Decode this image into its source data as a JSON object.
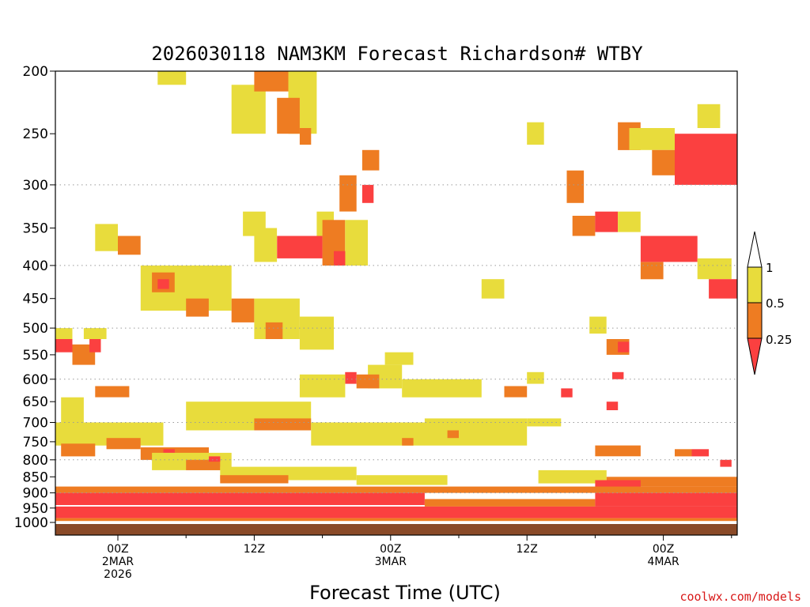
{
  "chart_data": {
    "type": "heatmap",
    "title": "2026030118 NAM3KM Forecast Richardson# WTBY",
    "xlabel": "Forecast Time (UTC)",
    "ylabel": "",
    "credit": "coolwx.com/models",
    "y_axis": {
      "scale": "log-pressure",
      "range": [
        1000,
        200
      ],
      "inverted": true,
      "ticks": [
        200,
        250,
        300,
        350,
        400,
        450,
        500,
        550,
        600,
        650,
        700,
        750,
        800,
        850,
        900,
        950,
        1000
      ]
    },
    "x_axis": {
      "range_hours": [
        -5.5,
        54.5
      ],
      "ticks": [
        {
          "hour": 0,
          "lines": [
            "00Z",
            "2MAR",
            "2026"
          ]
        },
        {
          "hour": 12,
          "lines": [
            "12Z"
          ]
        },
        {
          "hour": 24,
          "lines": [
            "00Z",
            "3MAR"
          ]
        },
        {
          "hour": 36,
          "lines": [
            "12Z"
          ]
        },
        {
          "hour": 48,
          "lines": [
            "00Z",
            "4MAR"
          ]
        }
      ]
    },
    "grid": {
      "dotted_pressure_levels": [
        300,
        400,
        500,
        600,
        700,
        800,
        900
      ]
    },
    "colorbar": {
      "levels": [
        "1",
        "0.5",
        "0.25"
      ],
      "bins": [
        {
          "label": "> 1",
          "color": "#ffffff"
        },
        {
          "label": "0.5 - 1",
          "color": "#e8dc3c"
        },
        {
          "label": "0.25 - 0.5",
          "color": "#ee7c22"
        },
        {
          "label": "< 0.25",
          "color": "#fb4040"
        }
      ]
    },
    "ground_color": "#8a4a28",
    "regions": [
      {
        "bin": 1,
        "hours": [
          3.5,
          6
        ],
        "p": [
          200,
          210
        ]
      },
      {
        "bin": 1,
        "hours": [
          10,
          13
        ],
        "p": [
          210,
          250
        ]
      },
      {
        "bin": 2,
        "hours": [
          12,
          15
        ],
        "p": [
          200,
          215
        ]
      },
      {
        "bin": 1,
        "hours": [
          15,
          17.5
        ],
        "p": [
          200,
          250
        ]
      },
      {
        "bin": 2,
        "hours": [
          14,
          16
        ],
        "p": [
          220,
          250
        ]
      },
      {
        "bin": 2,
        "hours": [
          16,
          17
        ],
        "p": [
          245,
          260
        ]
      },
      {
        "bin": 2,
        "hours": [
          21.5,
          23
        ],
        "p": [
          265,
          285
        ]
      },
      {
        "bin": 1,
        "hours": [
          36,
          37.5
        ],
        "p": [
          240,
          260
        ]
      },
      {
        "bin": 2,
        "hours": [
          44,
          46
        ],
        "p": [
          240,
          265
        ]
      },
      {
        "bin": 1,
        "hours": [
          45,
          49
        ],
        "p": [
          245,
          265
        ]
      },
      {
        "bin": 3,
        "hours": [
          49,
          54.5
        ],
        "p": [
          250,
          300
        ]
      },
      {
        "bin": 2,
        "hours": [
          47,
          49
        ],
        "p": [
          265,
          290
        ]
      },
      {
        "bin": 1,
        "hours": [
          51,
          53
        ],
        "p": [
          225,
          245
        ]
      },
      {
        "bin": 2,
        "hours": [
          39.5,
          41
        ],
        "p": [
          285,
          320
        ]
      },
      {
        "bin": 2,
        "hours": [
          19.5,
          21
        ],
        "p": [
          290,
          330
        ]
      },
      {
        "bin": 3,
        "hours": [
          21.5,
          22.5
        ],
        "p": [
          300,
          320
        ]
      },
      {
        "bin": 1,
        "hours": [
          17.5,
          19
        ],
        "p": [
          330,
          360
        ]
      },
      {
        "bin": 1,
        "hours": [
          11,
          13
        ],
        "p": [
          330,
          360
        ]
      },
      {
        "bin": 2,
        "hours": [
          0,
          2
        ],
        "p": [
          360,
          385
        ]
      },
      {
        "bin": 1,
        "hours": [
          -2,
          0
        ],
        "p": [
          345,
          380
        ]
      },
      {
        "bin": 3,
        "hours": [
          14,
          18
        ],
        "p": [
          360,
          390
        ]
      },
      {
        "bin": 1,
        "hours": [
          12,
          14
        ],
        "p": [
          350,
          395
        ]
      },
      {
        "bin": 2,
        "hours": [
          18,
          20
        ],
        "p": [
          340,
          400
        ]
      },
      {
        "bin": 1,
        "hours": [
          20,
          22
        ],
        "p": [
          340,
          400
        ]
      },
      {
        "bin": 3,
        "hours": [
          19,
          20
        ],
        "p": [
          380,
          400
        ]
      },
      {
        "bin": 2,
        "hours": [
          40,
          42
        ],
        "p": [
          335,
          360
        ]
      },
      {
        "bin": 3,
        "hours": [
          42,
          44
        ],
        "p": [
          330,
          355
        ]
      },
      {
        "bin": 1,
        "hours": [
          44,
          46
        ],
        "p": [
          330,
          355
        ]
      },
      {
        "bin": 3,
        "hours": [
          46,
          51
        ],
        "p": [
          360,
          395
        ]
      },
      {
        "bin": 2,
        "hours": [
          46,
          48
        ],
        "p": [
          395,
          420
        ]
      },
      {
        "bin": 1,
        "hours": [
          51,
          54
        ],
        "p": [
          390,
          420
        ]
      },
      {
        "bin": 3,
        "hours": [
          52,
          54.5
        ],
        "p": [
          420,
          450
        ]
      },
      {
        "bin": 1,
        "hours": [
          2,
          10
        ],
        "p": [
          400,
          470
        ]
      },
      {
        "bin": 2,
        "hours": [
          3,
          5
        ],
        "p": [
          410,
          440
        ]
      },
      {
        "bin": 3,
        "hours": [
          3.5,
          4.5
        ],
        "p": [
          420,
          435
        ]
      },
      {
        "bin": 2,
        "hours": [
          6,
          8
        ],
        "p": [
          450,
          480
        ]
      },
      {
        "bin": 2,
        "hours": [
          10,
          12
        ],
        "p": [
          450,
          490
        ]
      },
      {
        "bin": 1,
        "hours": [
          12,
          16
        ],
        "p": [
          450,
          520
        ]
      },
      {
        "bin": 2,
        "hours": [
          13,
          14.5
        ],
        "p": [
          490,
          520
        ]
      },
      {
        "bin": 1,
        "hours": [
          16,
          19
        ],
        "p": [
          480,
          540
        ]
      },
      {
        "bin": 1,
        "hours": [
          32,
          34
        ],
        "p": [
          420,
          450
        ]
      },
      {
        "bin": 1,
        "hours": [
          41.5,
          43
        ],
        "p": [
          480,
          510
        ]
      },
      {
        "bin": 2,
        "hours": [
          43,
          45
        ],
        "p": [
          520,
          550
        ]
      },
      {
        "bin": 3,
        "hours": [
          44,
          45
        ],
        "p": [
          525,
          545
        ]
      },
      {
        "bin": 1,
        "hours": [
          -5.5,
          -4
        ],
        "p": [
          500,
          540
        ]
      },
      {
        "bin": 3,
        "hours": [
          -5.5,
          -4
        ],
        "p": [
          520,
          545
        ]
      },
      {
        "bin": 2,
        "hours": [
          -4,
          -2
        ],
        "p": [
          530,
          570
        ]
      },
      {
        "bin": 3,
        "hours": [
          -2.5,
          -1.5
        ],
        "p": [
          520,
          545
        ]
      },
      {
        "bin": 1,
        "hours": [
          -3,
          -1
        ],
        "p": [
          500,
          520
        ]
      },
      {
        "bin": 1,
        "hours": [
          23.5,
          26
        ],
        "p": [
          545,
          570
        ]
      },
      {
        "bin": 1,
        "hours": [
          22,
          25
        ],
        "p": [
          570,
          620
        ]
      },
      {
        "bin": 3,
        "hours": [
          20,
          21
        ],
        "p": [
          585,
          610
        ]
      },
      {
        "bin": 2,
        "hours": [
          21,
          23
        ],
        "p": [
          590,
          620
        ]
      },
      {
        "bin": 1,
        "hours": [
          16,
          20
        ],
        "p": [
          590,
          640
        ]
      },
      {
        "bin": 1,
        "hours": [
          25,
          32
        ],
        "p": [
          600,
          640
        ]
      },
      {
        "bin": 2,
        "hours": [
          34,
          36
        ],
        "p": [
          615,
          640
        ]
      },
      {
        "bin": 1,
        "hours": [
          36,
          37.5
        ],
        "p": [
          585,
          610
        ]
      },
      {
        "bin": 3,
        "hours": [
          43.5,
          44.5
        ],
        "p": [
          585,
          600
        ]
      },
      {
        "bin": 3,
        "hours": [
          39,
          40
        ],
        "p": [
          620,
          640
        ]
      },
      {
        "bin": 3,
        "hours": [
          43,
          44
        ],
        "p": [
          650,
          670
        ]
      },
      {
        "bin": 2,
        "hours": [
          -2,
          1
        ],
        "p": [
          615,
          640
        ]
      },
      {
        "bin": 1,
        "hours": [
          -5,
          -3
        ],
        "p": [
          640,
          720
        ]
      },
      {
        "bin": 1,
        "hours": [
          6,
          17
        ],
        "p": [
          650,
          720
        ]
      },
      {
        "bin": 2,
        "hours": [
          12,
          17
        ],
        "p": [
          690,
          720
        ]
      },
      {
        "bin": 1,
        "hours": [
          17,
          27
        ],
        "p": [
          700,
          760
        ]
      },
      {
        "bin": 2,
        "hours": [
          25,
          26
        ],
        "p": [
          740,
          760
        ]
      },
      {
        "bin": 1,
        "hours": [
          27,
          36
        ],
        "p": [
          690,
          760
        ]
      },
      {
        "bin": 2,
        "hours": [
          29,
          30
        ],
        "p": [
          720,
          740
        ]
      },
      {
        "bin": 1,
        "hours": [
          36,
          39
        ],
        "p": [
          690,
          710
        ]
      },
      {
        "bin": 1,
        "hours": [
          -5.5,
          4
        ],
        "p": [
          700,
          760
        ]
      },
      {
        "bin": 2,
        "hours": [
          -1,
          2
        ],
        "p": [
          740,
          770
        ]
      },
      {
        "bin": 2,
        "hours": [
          -5,
          -2
        ],
        "p": [
          755,
          790
        ]
      },
      {
        "bin": 2,
        "hours": [
          2,
          8
        ],
        "p": [
          765,
          800
        ]
      },
      {
        "bin": 3,
        "hours": [
          4,
          5
        ],
        "p": [
          770,
          790
        ]
      },
      {
        "bin": 1,
        "hours": [
          3,
          10
        ],
        "p": [
          780,
          830
        ]
      },
      {
        "bin": 2,
        "hours": [
          6,
          9
        ],
        "p": [
          800,
          830
        ]
      },
      {
        "bin": 3,
        "hours": [
          8,
          9
        ],
        "p": [
          790,
          805
        ]
      },
      {
        "bin": 1,
        "hours": [
          9,
          21
        ],
        "p": [
          820,
          860
        ]
      },
      {
        "bin": 2,
        "hours": [
          9,
          15
        ],
        "p": [
          845,
          870
        ]
      },
      {
        "bin": 1,
        "hours": [
          21,
          29
        ],
        "p": [
          845,
          875
        ]
      },
      {
        "bin": 1,
        "hours": [
          37,
          43
        ],
        "p": [
          830,
          870
        ]
      },
      {
        "bin": 2,
        "hours": [
          42,
          46
        ],
        "p": [
          760,
          790
        ]
      },
      {
        "bin": 2,
        "hours": [
          49,
          50.5
        ],
        "p": [
          770,
          790
        ]
      },
      {
        "bin": 3,
        "hours": [
          50.5,
          52
        ],
        "p": [
          770,
          790
        ]
      },
      {
        "bin": 3,
        "hours": [
          53,
          54
        ],
        "p": [
          800,
          820
        ]
      },
      {
        "bin": 2,
        "hours": [
          43,
          54.5
        ],
        "p": [
          850,
          880
        ]
      },
      {
        "bin": 3,
        "hours": [
          42,
          46
        ],
        "p": [
          860,
          900
        ]
      },
      {
        "bin": 2,
        "hours": [
          -5.5,
          54.5
        ],
        "p": [
          880,
          900
        ]
      },
      {
        "bin": 3,
        "hours": [
          -5.5,
          27
        ],
        "p": [
          900,
          940
        ]
      },
      {
        "bin": 2,
        "hours": [
          27,
          42
        ],
        "p": [
          920,
          945
        ]
      },
      {
        "bin": 3,
        "hours": [
          42,
          54.5
        ],
        "p": [
          900,
          945
        ]
      },
      {
        "bin": 3,
        "hours": [
          -5.5,
          54.5
        ],
        "p": [
          945,
          985
        ]
      },
      {
        "bin": 2,
        "hours": [
          -5.5,
          54.5
        ],
        "p": [
          985,
          995
        ]
      }
    ]
  }
}
